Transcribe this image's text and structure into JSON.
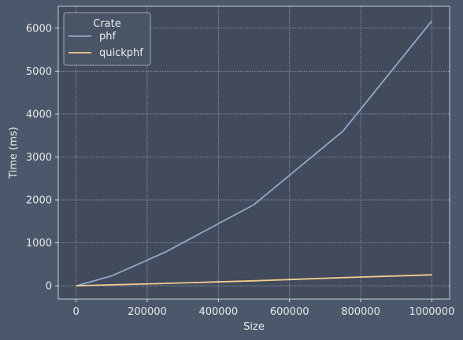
{
  "chart_data": {
    "type": "line",
    "title": "",
    "xlabel": "Size",
    "ylabel": "Time (ms)",
    "xlim": [
      -50000,
      1050000
    ],
    "ylim": [
      -310,
      6510
    ],
    "xticks": [
      0,
      200000,
      400000,
      600000,
      800000,
      1000000
    ],
    "yticks": [
      0,
      1000,
      2000,
      3000,
      4000,
      5000,
      6000
    ],
    "grid": true,
    "legend": {
      "title": "Crate",
      "position": "top-left"
    },
    "series": [
      {
        "name": "phf",
        "color": "#8faacb",
        "x": [
          1000,
          10000,
          100000,
          250000,
          500000,
          750000,
          1000000
        ],
        "y": [
          2,
          20,
          230,
          780,
          1890,
          3600,
          6170
        ]
      },
      {
        "name": "quickphf",
        "color": "#f2cc8f",
        "x": [
          1000,
          10000,
          100000,
          250000,
          500000,
          750000,
          1000000
        ],
        "y": [
          0,
          3,
          22,
          55,
          115,
          190,
          255
        ]
      }
    ]
  },
  "colors": {
    "background": "#4b586b",
    "plot_background": "#414b5c",
    "axis_text": "#e8e8e8",
    "grid": "#a9b1bd"
  }
}
